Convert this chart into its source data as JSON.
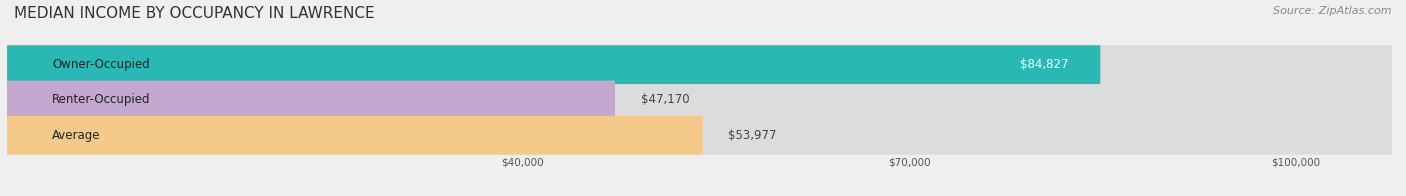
{
  "title": "MEDIAN INCOME BY OCCUPANCY IN LAWRENCE",
  "source": "Source: ZipAtlas.com",
  "categories": [
    "Owner-Occupied",
    "Renter-Occupied",
    "Average"
  ],
  "values": [
    84827,
    47170,
    53977
  ],
  "bar_colors": [
    "#2ab8b4",
    "#c4a8d0",
    "#f5c98a"
  ],
  "label_colors": [
    "#333333",
    "#333333",
    "#333333"
  ],
  "value_labels": [
    "$84,827",
    "$47,170",
    "$53,977"
  ],
  "value_inside": [
    true,
    false,
    false
  ],
  "xticks": [
    40000,
    70000,
    100000
  ],
  "xtick_labels": [
    "$40,000",
    "$70,000",
    "$100,000"
  ],
  "xlim": [
    0,
    108000
  ],
  "bar_height": 0.55,
  "background_color": "#efefef",
  "bar_bg_color": "#dcdcdc",
  "title_fontsize": 11,
  "source_fontsize": 8,
  "label_fontsize": 8.5,
  "value_fontsize": 8.5
}
